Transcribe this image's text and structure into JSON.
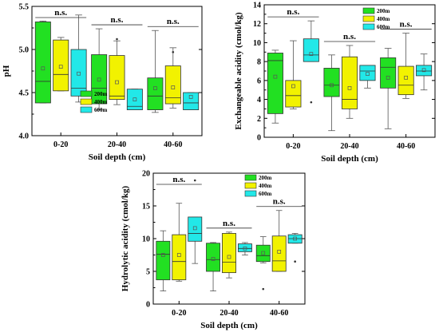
{
  "colors": {
    "200m": "#22e022",
    "400m": "#f2f200",
    "600m": "#22e8e8"
  },
  "chart_data": [
    {
      "type": "box",
      "xlabel": "Soil depth (cm)",
      "ylabel": "pH",
      "ylim": [
        4.0,
        5.5
      ],
      "yticks": [
        "4.0",
        "4.5",
        "5.0",
        "5.5"
      ],
      "categories": [
        "0-20",
        "20-40",
        "40-60"
      ],
      "legend": [
        "200m",
        "400m",
        "600m"
      ],
      "legend_position": "lower-left-center",
      "annotations": [
        "n.s.",
        "n.s.",
        "n.s."
      ],
      "series": [
        {
          "name": "200m",
          "boxes": [
            {
              "min": 4.38,
              "q1": 4.38,
              "median": 4.63,
              "q3": 5.32,
              "max": 5.33,
              "mean": 4.78,
              "outliers": []
            },
            {
              "min": 4.3,
              "q1": 4.37,
              "median": 4.55,
              "q3": 4.94,
              "max": 5.24,
              "mean": 4.65,
              "outliers": []
            },
            {
              "min": 4.27,
              "q1": 4.3,
              "median": 4.46,
              "q3": 4.67,
              "max": 5.22,
              "mean": 4.55,
              "outliers": []
            }
          ]
        },
        {
          "name": "400m",
          "boxes": [
            {
              "min": 4.52,
              "q1": 4.52,
              "median": 4.71,
              "q3": 5.11,
              "max": 5.14,
              "mean": 4.8,
              "outliers": []
            },
            {
              "min": 4.36,
              "q1": 4.42,
              "median": 4.46,
              "q3": 4.93,
              "max": 5.1,
              "mean": 4.62,
              "outliers": [
                5.12
              ]
            },
            {
              "min": 4.32,
              "q1": 4.37,
              "median": 4.44,
              "q3": 4.81,
              "max": 5.02,
              "mean": 4.56,
              "outliers": [
                4.97
              ]
            }
          ]
        },
        {
          "name": "600m",
          "boxes": [
            {
              "min": 4.39,
              "q1": 4.46,
              "median": 4.55,
              "q3": 5.0,
              "max": 5.4,
              "mean": 4.72,
              "outliers": []
            },
            {
              "min": 4.3,
              "q1": 4.3,
              "median": 4.34,
              "q3": 4.54,
              "max": 4.54,
              "mean": 4.42,
              "outliers": []
            },
            {
              "min": 4.3,
              "q1": 4.3,
              "median": 4.38,
              "q3": 4.5,
              "max": 4.5,
              "mean": 4.45,
              "outliers": []
            }
          ]
        }
      ]
    },
    {
      "type": "box",
      "xlabel": "Soil depth (cm)",
      "ylabel": "Exchangeable acidity (cmol/kg)",
      "ylim": [
        0,
        14
      ],
      "yticks": [
        "0",
        "2",
        "4",
        "6",
        "8",
        "10",
        "12",
        "14"
      ],
      "categories": [
        "0-20",
        "20-40",
        "40-60"
      ],
      "legend": [
        "200m",
        "400m",
        "600m"
      ],
      "legend_position": "top-right",
      "annotations": [
        "n.s.",
        "n.s.",
        "n.s."
      ],
      "series": [
        {
          "name": "200m",
          "boxes": [
            {
              "min": 1.5,
              "q1": 2.5,
              "median": 8.1,
              "q3": 8.9,
              "max": 9.2,
              "mean": 6.4,
              "outliers": []
            },
            {
              "min": 0.7,
              "q1": 4.3,
              "median": 5.5,
              "q3": 7.3,
              "max": 8.7,
              "mean": 5.5,
              "outliers": []
            },
            {
              "min": 0.9,
              "q1": 5.2,
              "median": 7.4,
              "q3": 8.4,
              "max": 9.4,
              "mean": 6.3,
              "outliers": []
            }
          ]
        },
        {
          "name": "400m",
          "boxes": [
            {
              "min": 3.0,
              "q1": 3.2,
              "median": 4.4,
              "q3": 6.0,
              "max": 10.2,
              "mean": 5.4,
              "outliers": []
            },
            {
              "min": 2.0,
              "q1": 3.0,
              "median": 4.0,
              "q3": 8.5,
              "max": 9.7,
              "mean": 5.2,
              "outliers": []
            },
            {
              "min": 4.1,
              "q1": 4.5,
              "median": 5.5,
              "q3": 7.5,
              "max": 11.0,
              "mean": 6.3,
              "outliers": []
            }
          ]
        },
        {
          "name": "600m",
          "boxes": [
            {
              "min": 8.0,
              "q1": 8.0,
              "median": 8.7,
              "q3": 10.4,
              "max": 12.3,
              "mean": 8.8,
              "outliers": [
                3.7
              ]
            },
            {
              "min": 5.2,
              "q1": 6.0,
              "median": 7.0,
              "q3": 7.6,
              "max": 7.6,
              "mean": 6.7,
              "outliers": []
            },
            {
              "min": 5.0,
              "q1": 6.5,
              "median": 7.0,
              "q3": 7.6,
              "max": 8.8,
              "mean": 7.1,
              "outliers": []
            }
          ]
        }
      ]
    },
    {
      "type": "box",
      "xlabel": "Soil depth (cm)",
      "ylabel": "Hydrolytic acidity (cmol/kg)",
      "ylim": [
        0,
        20
      ],
      "yticks": [
        "0",
        "5",
        "10",
        "15",
        "20"
      ],
      "categories": [
        "0-20",
        "20-40",
        "40-60"
      ],
      "legend": [
        "200m",
        "400m",
        "600m"
      ],
      "legend_position": "top-right",
      "annotations": [
        "n.s.",
        "n.s.",
        "n.s."
      ],
      "series": [
        {
          "name": "200m",
          "boxes": [
            {
              "min": 2.0,
              "q1": 3.7,
              "median": 7.6,
              "q3": 9.6,
              "max": 11.2,
              "mean": 7.5,
              "outliers": []
            },
            {
              "min": 2.0,
              "q1": 5.0,
              "median": 6.8,
              "q3": 9.3,
              "max": 9.4,
              "mean": 6.9,
              "outliers": []
            },
            {
              "min": 6.3,
              "q1": 6.5,
              "median": 7.4,
              "q3": 9.0,
              "max": 10.3,
              "mean": 7.8,
              "outliers": [
                2.3
              ]
            }
          ]
        },
        {
          "name": "400m",
          "boxes": [
            {
              "min": 3.5,
              "q1": 3.7,
              "median": 6.5,
              "q3": 10.6,
              "max": 15.4,
              "mean": 7.5,
              "outliers": []
            },
            {
              "min": 4.0,
              "q1": 4.8,
              "median": 6.4,
              "q3": 10.8,
              "max": 11.0,
              "mean": 7.2,
              "outliers": []
            },
            {
              "min": 5.0,
              "q1": 5.0,
              "median": 6.6,
              "q3": 10.4,
              "max": 14.3,
              "mean": 8.0,
              "outliers": []
            }
          ]
        },
        {
          "name": "600m",
          "boxes": [
            {
              "min": 6.2,
              "q1": 9.6,
              "median": 10.8,
              "q3": 13.3,
              "max": 13.3,
              "mean": 11.6,
              "outliers": [
                18.9
              ]
            },
            {
              "min": 7.5,
              "q1": 8.0,
              "median": 8.5,
              "q3": 9.2,
              "max": 9.4,
              "mean": 8.5,
              "outliers": []
            },
            {
              "min": 9.3,
              "q1": 9.3,
              "median": 10.0,
              "q3": 10.6,
              "max": 10.8,
              "mean": 10.0,
              "outliers": [
                6.5
              ]
            }
          ]
        }
      ]
    }
  ]
}
